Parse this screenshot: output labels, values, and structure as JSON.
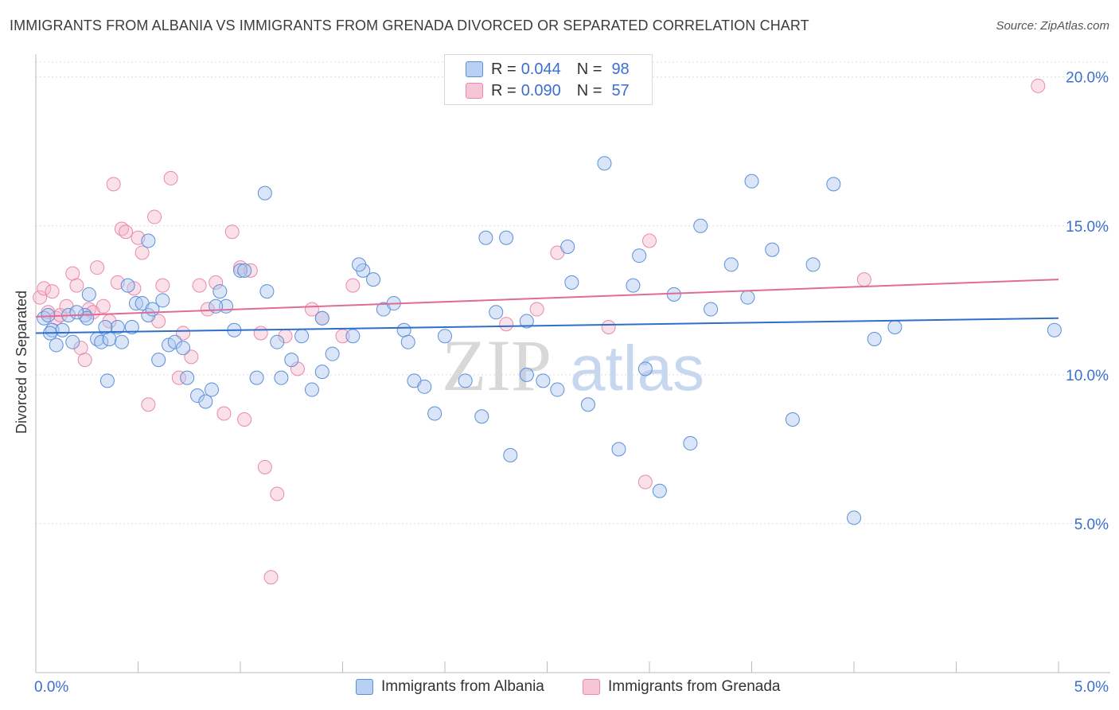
{
  "header": {
    "title": "IMMIGRANTS FROM ALBANIA VS IMMIGRANTS FROM GRENADA DIVORCED OR SEPARATED CORRELATION CHART",
    "source": "Source: ZipAtlas.com"
  },
  "legend": {
    "rows": [
      {
        "r_label": "R =",
        "r_value": "0.044",
        "n_label": "N =",
        "n_value": "98"
      },
      {
        "r_label": "R =",
        "r_value": "0.090",
        "n_label": "N =",
        "n_value": "57"
      }
    ]
  },
  "watermark": {
    "zip": "ZIP",
    "atlas": "atlas"
  },
  "chart_data": {
    "type": "scatter",
    "title": "IMMIGRANTS FROM ALBANIA VS IMMIGRANTS FROM GRENADA DIVORCED OR SEPARATED CORRELATION CHART",
    "xlabel": "",
    "ylabel": "Divorced or Separated",
    "xlim": [
      0,
      5
    ],
    "ylim": [
      0,
      20.5
    ],
    "x_tick_labels": [
      "0.0%",
      "5.0%"
    ],
    "y_ticks": [
      5,
      10,
      15,
      20
    ],
    "y_tick_labels": [
      "5.0%",
      "10.0%",
      "15.0%",
      "20.0%"
    ],
    "grid": true,
    "legend_position": "top-center",
    "colors": {
      "albania": "#5b8fd9",
      "grenada": "#e98aaa",
      "albania_line": "#2e6fcc",
      "grenada_line": "#e06c96"
    },
    "series": [
      {
        "name": "Immigrants from Albania",
        "trend": {
          "x": [
            0,
            5
          ],
          "y": [
            11.4,
            11.9
          ]
        },
        "points": [
          [
            0.04,
            11.9
          ],
          [
            0.06,
            12.0
          ],
          [
            0.08,
            11.5
          ],
          [
            0.1,
            11.0
          ],
          [
            0.13,
            11.5
          ],
          [
            0.16,
            12.0
          ],
          [
            0.18,
            11.1
          ],
          [
            0.24,
            12.0
          ],
          [
            0.25,
            11.9
          ],
          [
            0.26,
            12.7
          ],
          [
            0.3,
            11.2
          ],
          [
            0.32,
            11.1
          ],
          [
            0.36,
            11.2
          ],
          [
            0.4,
            11.6
          ],
          [
            0.42,
            11.1
          ],
          [
            0.45,
            13.0
          ],
          [
            0.47,
            11.6
          ],
          [
            0.49,
            12.4
          ],
          [
            0.52,
            12.4
          ],
          [
            0.55,
            12.0
          ],
          [
            0.57,
            12.2
          ],
          [
            0.6,
            10.5
          ],
          [
            0.62,
            12.5
          ],
          [
            0.65,
            11.0
          ],
          [
            0.68,
            11.1
          ],
          [
            0.72,
            10.9
          ],
          [
            0.74,
            9.9
          ],
          [
            0.79,
            9.3
          ],
          [
            0.83,
            9.1
          ],
          [
            0.86,
            9.5
          ],
          [
            0.9,
            12.8
          ],
          [
            0.93,
            12.3
          ],
          [
            0.97,
            11.5
          ],
          [
            1.0,
            13.5
          ],
          [
            1.02,
            13.5
          ],
          [
            1.08,
            9.9
          ],
          [
            1.13,
            12.8
          ],
          [
            1.18,
            11.1
          ],
          [
            1.2,
            9.9
          ],
          [
            1.25,
            10.5
          ],
          [
            1.3,
            11.3
          ],
          [
            1.35,
            9.5
          ],
          [
            1.4,
            10.1
          ],
          [
            1.45,
            10.7
          ],
          [
            1.55,
            11.3
          ],
          [
            1.6,
            13.5
          ],
          [
            1.65,
            13.2
          ],
          [
            1.7,
            12.2
          ],
          [
            1.75,
            12.4
          ],
          [
            1.8,
            11.5
          ],
          [
            1.85,
            9.8
          ],
          [
            1.9,
            9.6
          ],
          [
            1.95,
            8.7
          ],
          [
            2.0,
            11.3
          ],
          [
            2.1,
            9.8
          ],
          [
            2.18,
            8.6
          ],
          [
            2.25,
            12.1
          ],
          [
            2.32,
            7.3
          ],
          [
            2.4,
            10.0
          ],
          [
            2.48,
            9.8
          ],
          [
            2.55,
            9.5
          ],
          [
            2.62,
            13.1
          ],
          [
            2.7,
            9.0
          ],
          [
            2.78,
            17.1
          ],
          [
            2.85,
            7.5
          ],
          [
            2.92,
            13.0
          ],
          [
            2.98,
            10.2
          ],
          [
            3.05,
            6.1
          ],
          [
            3.12,
            12.7
          ],
          [
            3.2,
            7.7
          ],
          [
            3.3,
            12.2
          ],
          [
            3.4,
            13.7
          ],
          [
            3.5,
            16.5
          ],
          [
            3.6,
            14.2
          ],
          [
            3.7,
            8.5
          ],
          [
            3.8,
            13.7
          ],
          [
            3.9,
            16.4
          ],
          [
            4.0,
            5.2
          ],
          [
            4.1,
            11.2
          ],
          [
            4.2,
            11.6
          ],
          [
            4.98,
            11.5
          ],
          [
            0.35,
            9.8
          ],
          [
            0.55,
            14.5
          ],
          [
            1.12,
            16.1
          ],
          [
            1.4,
            11.9
          ],
          [
            2.2,
            14.6
          ],
          [
            2.3,
            14.6
          ],
          [
            2.6,
            14.3
          ],
          [
            2.95,
            14.0
          ],
          [
            3.25,
            15.0
          ],
          [
            0.2,
            12.1
          ],
          [
            0.34,
            11.6
          ],
          [
            0.88,
            12.3
          ],
          [
            1.58,
            13.7
          ],
          [
            1.82,
            11.1
          ],
          [
            2.4,
            11.8
          ],
          [
            3.48,
            12.6
          ],
          [
            0.07,
            11.4
          ]
        ]
      },
      {
        "name": "Immigrants from Grenada",
        "trend": {
          "x": [
            0,
            5
          ],
          "y": [
            11.95,
            13.2
          ]
        },
        "points": [
          [
            0.02,
            12.6
          ],
          [
            0.04,
            12.9
          ],
          [
            0.06,
            12.1
          ],
          [
            0.08,
            12.8
          ],
          [
            0.1,
            11.9
          ],
          [
            0.12,
            12.0
          ],
          [
            0.15,
            12.3
          ],
          [
            0.18,
            13.4
          ],
          [
            0.2,
            13.0
          ],
          [
            0.22,
            10.9
          ],
          [
            0.24,
            10.5
          ],
          [
            0.26,
            12.2
          ],
          [
            0.28,
            12.1
          ],
          [
            0.3,
            13.6
          ],
          [
            0.33,
            12.3
          ],
          [
            0.36,
            11.8
          ],
          [
            0.38,
            16.4
          ],
          [
            0.4,
            13.1
          ],
          [
            0.42,
            14.9
          ],
          [
            0.44,
            14.8
          ],
          [
            0.48,
            12.9
          ],
          [
            0.5,
            14.6
          ],
          [
            0.52,
            14.1
          ],
          [
            0.55,
            9.0
          ],
          [
            0.58,
            15.3
          ],
          [
            0.6,
            11.8
          ],
          [
            0.62,
            13.0
          ],
          [
            0.66,
            16.6
          ],
          [
            0.7,
            9.9
          ],
          [
            0.72,
            11.4
          ],
          [
            0.76,
            10.6
          ],
          [
            0.8,
            13.0
          ],
          [
            0.84,
            12.2
          ],
          [
            0.88,
            13.1
          ],
          [
            0.92,
            8.7
          ],
          [
            0.96,
            14.8
          ],
          [
            1.0,
            13.6
          ],
          [
            1.02,
            8.5
          ],
          [
            1.05,
            13.5
          ],
          [
            1.1,
            11.4
          ],
          [
            1.12,
            6.9
          ],
          [
            1.15,
            3.2
          ],
          [
            1.18,
            6.0
          ],
          [
            1.22,
            11.3
          ],
          [
            1.28,
            10.2
          ],
          [
            1.35,
            12.2
          ],
          [
            1.4,
            11.9
          ],
          [
            1.5,
            11.3
          ],
          [
            1.55,
            13.0
          ],
          [
            2.3,
            11.7
          ],
          [
            2.45,
            12.2
          ],
          [
            2.55,
            14.1
          ],
          [
            2.8,
            11.6
          ],
          [
            2.98,
            6.4
          ],
          [
            3.0,
            14.5
          ],
          [
            4.05,
            13.2
          ],
          [
            4.9,
            19.7
          ]
        ]
      }
    ]
  },
  "bottom_legend": {
    "items": [
      {
        "label": "Immigrants from Albania"
      },
      {
        "label": "Immigrants from Grenada"
      }
    ]
  }
}
